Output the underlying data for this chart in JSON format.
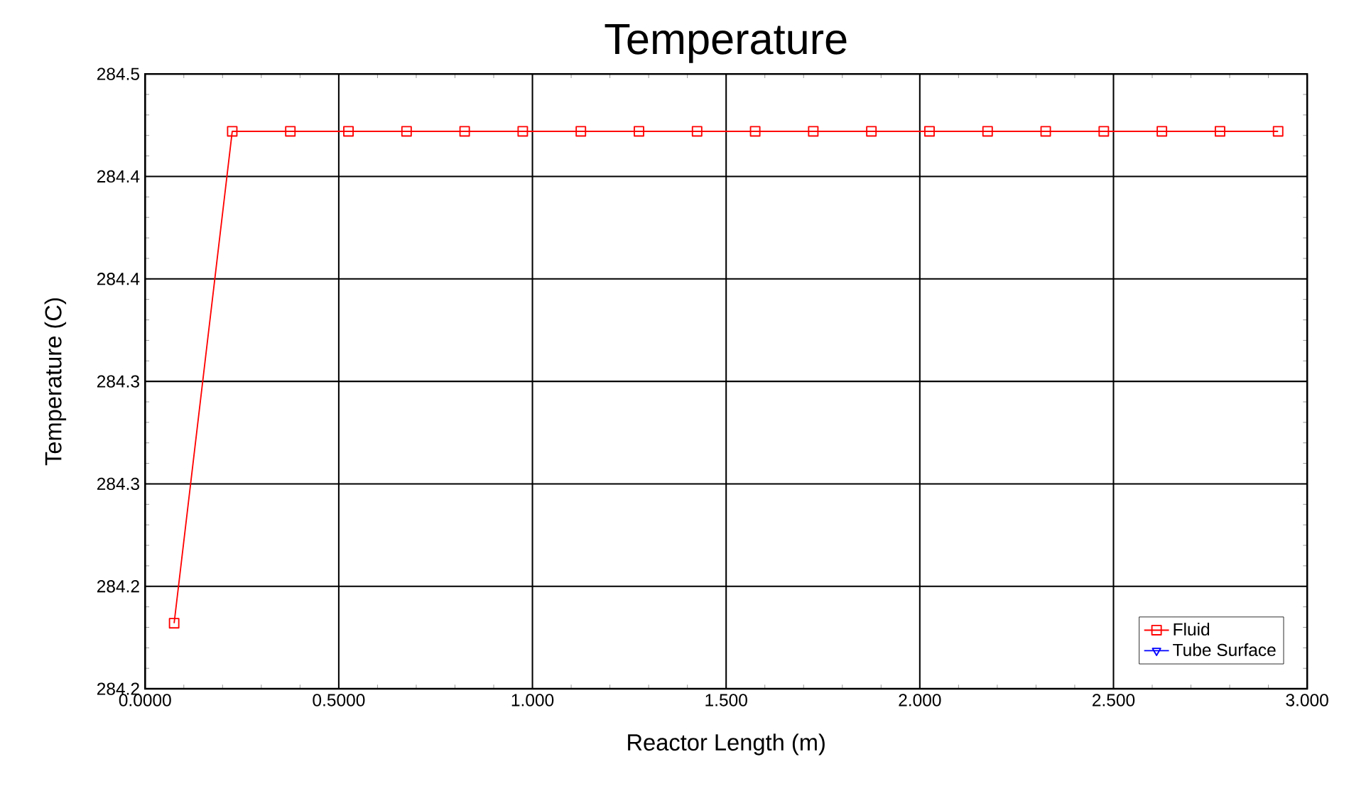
{
  "chart_data": {
    "type": "line",
    "title": "Temperature",
    "xlabel": "Reactor Length (m)",
    "ylabel": "Temperature (C)",
    "x": [
      0.075,
      0.225,
      0.375,
      0.525,
      0.675,
      0.825,
      0.975,
      1.125,
      1.275,
      1.425,
      1.575,
      1.725,
      1.875,
      2.025,
      2.175,
      2.325,
      2.475,
      2.625,
      2.775,
      2.925
    ],
    "series": [
      {
        "name": "Fluid",
        "color": "#ff0000",
        "marker": "square",
        "values": [
          284.232,
          284.472,
          284.472,
          284.472,
          284.472,
          284.472,
          284.472,
          284.472,
          284.472,
          284.472,
          284.472,
          284.472,
          284.472,
          284.472,
          284.472,
          284.472,
          284.472,
          284.472,
          284.472,
          284.472
        ]
      },
      {
        "name": "Tube Surface",
        "color": "#0000ff",
        "marker": "triangle",
        "values": [
          null,
          null,
          null,
          null,
          null,
          null,
          null,
          null,
          null,
          null,
          null,
          null,
          null,
          null,
          null,
          null,
          null,
          null,
          null,
          null
        ]
      }
    ],
    "xlim": [
      0,
      3
    ],
    "ylim": [
      284.2,
      284.5
    ],
    "xticks": [
      {
        "value": 0,
        "label": "0.0000"
      },
      {
        "value": 0.5,
        "label": "0.5000"
      },
      {
        "value": 1,
        "label": "1.000"
      },
      {
        "value": 1.5,
        "label": "1.500"
      },
      {
        "value": 2,
        "label": "2.000"
      },
      {
        "value": 2.5,
        "label": "2.500"
      },
      {
        "value": 3,
        "label": "3.000"
      }
    ],
    "yticks": [
      {
        "value": 284.2,
        "label": "284.2"
      },
      {
        "value": 284.25,
        "label": "284.2"
      },
      {
        "value": 284.3,
        "label": "284.3"
      },
      {
        "value": 284.35,
        "label": "284.3"
      },
      {
        "value": 284.4,
        "label": "284.4"
      },
      {
        "value": 284.45,
        "label": "284.4"
      },
      {
        "value": 284.5,
        "label": "284.5"
      }
    ],
    "grid": true,
    "legend": "bottom right",
    "line_style": "solid"
  }
}
